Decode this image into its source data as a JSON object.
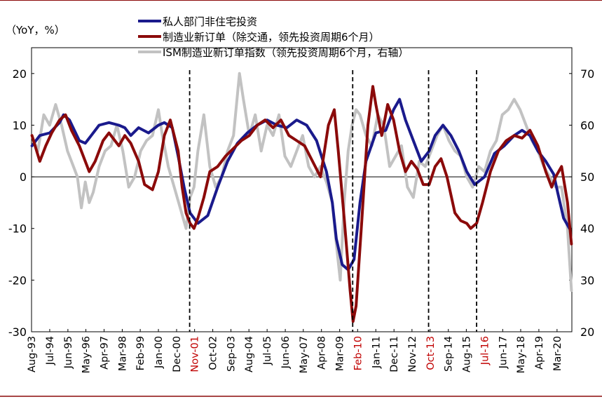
{
  "chart_data": {
    "type": "line",
    "unit_label": "（YoY，%）",
    "legend": [
      {
        "name": "私人部门非住宅投资",
        "color": "#1a1a8c",
        "axis": "left"
      },
      {
        "name": "制造业新订单（除交通，领先投资周期6个月）",
        "color": "#8b0a0a",
        "axis": "left"
      },
      {
        "name": "ISM制造业新订单指数（领先投资周期6个月，右轴）",
        "color": "#c2c2c2",
        "axis": "right"
      }
    ],
    "ylim_left": [
      -30,
      25
    ],
    "ylim_right": [
      20,
      75
    ],
    "y_ticks_left": [
      "20",
      "10",
      "0",
      "-10",
      "-20",
      "-30"
    ],
    "y_ticks_left_values": [
      20,
      10,
      0,
      -10,
      -20,
      -30
    ],
    "y_ticks_right": [
      "70",
      "60",
      "50",
      "40",
      "30",
      "20"
    ],
    "y_ticks_right_values": [
      70,
      60,
      50,
      40,
      30,
      20
    ],
    "x_range": [
      1993.58,
      2020.92
    ],
    "x_ticks": [
      "Aug-93",
      "Jul-94",
      "Jun-95",
      "May-96",
      "Apr-97",
      "Mar-98",
      "Feb-99",
      "Jan-00",
      "Dec-00",
      "Nov-01",
      "Oct-02",
      "Sep-03",
      "Aug-04",
      "Jul-05",
      "Jun-06",
      "May-07",
      "Apr-08",
      "Mar-09",
      "Feb-10",
      "Jan-11",
      "Dec-11",
      "Nov-12",
      "Oct-13",
      "Sep-14",
      "Aug-15",
      "Jul-16",
      "Jun-17",
      "May-18",
      "Apr-19",
      "Mar-20"
    ],
    "x_tick_values": [
      1993.58,
      1994.5,
      1995.42,
      1996.33,
      1997.25,
      1998.17,
      1999.08,
      2000.0,
      2000.92,
      2001.83,
      2002.75,
      2003.67,
      2004.58,
      2005.5,
      2006.42,
      2007.33,
      2008.25,
      2009.17,
      2010.08,
      2011.0,
      2011.92,
      2012.83,
      2013.75,
      2014.67,
      2015.58,
      2016.5,
      2017.42,
      2018.33,
      2019.25,
      2020.17
    ],
    "red_tick_labels": [
      "Nov-01",
      "Feb-10",
      "Oct-13",
      "Jul-16"
    ],
    "cycle_markers_x": [
      2001.58,
      2009.83,
      2013.67,
      2016.1
    ],
    "series": [
      {
        "name": "私人部门非住宅投资",
        "axis": "left",
        "x": [
          1993.6,
          1994.0,
          1994.5,
          1995.0,
          1995.2,
          1995.5,
          1996.0,
          1996.3,
          1996.6,
          1997.0,
          1997.5,
          1998.0,
          1998.3,
          1998.6,
          1999.0,
          1999.5,
          2000.0,
          2000.3,
          2000.7,
          2001.0,
          2001.3,
          2001.6,
          2002.0,
          2002.5,
          2003.0,
          2003.5,
          2004.0,
          2004.5,
          2005.0,
          2005.5,
          2006.0,
          2006.5,
          2007.0,
          2007.5,
          2008.0,
          2008.5,
          2008.8,
          2009.0,
          2009.3,
          2009.6,
          2009.9,
          2010.2,
          2010.5,
          2011.0,
          2011.5,
          2011.9,
          2012.2,
          2012.5,
          2012.9,
          2013.3,
          2013.7,
          2014.0,
          2014.4,
          2014.8,
          2015.2,
          2015.6,
          2016.0,
          2016.5,
          2017.0,
          2017.5,
          2018.0,
          2018.4,
          2018.8,
          2019.2,
          2019.6,
          2020.0,
          2020.2,
          2020.5,
          2020.8
        ],
        "y": [
          6.0,
          8.0,
          8.5,
          10.5,
          12.0,
          11.0,
          7.0,
          6.5,
          8.0,
          10.0,
          10.5,
          10.0,
          9.5,
          8.0,
          9.5,
          8.5,
          10.0,
          10.5,
          9.5,
          4.0,
          -2.0,
          -7.0,
          -9.0,
          -7.5,
          -2.0,
          3.0,
          6.5,
          8.5,
          10.0,
          11.0,
          10.0,
          9.5,
          11.0,
          10.0,
          7.0,
          1.0,
          -5.0,
          -12.0,
          -17.0,
          -18.0,
          -16.0,
          -5.0,
          3.0,
          8.5,
          9.0,
          13.0,
          15.0,
          11.0,
          7.0,
          3.0,
          5.0,
          8.0,
          10.0,
          8.0,
          5.0,
          1.0,
          -1.5,
          0.0,
          4.5,
          6.0,
          8.0,
          9.0,
          8.0,
          5.0,
          3.0,
          0.5,
          -3.0,
          -8.0,
          -10.0
        ]
      },
      {
        "name": "制造业新订单（除交通，领先投资周期6个月）",
        "axis": "left",
        "x": [
          1993.6,
          1994.0,
          1994.3,
          1994.6,
          1995.0,
          1995.3,
          1995.6,
          1996.0,
          1996.5,
          1996.8,
          1997.2,
          1997.5,
          1998.0,
          1998.3,
          1998.6,
          1999.0,
          1999.3,
          1999.7,
          2000.0,
          2000.3,
          2000.6,
          2001.0,
          2001.2,
          2001.4,
          2001.6,
          2001.8,
          2002.0,
          2002.3,
          2002.6,
          2003.0,
          2003.4,
          2003.8,
          2004.2,
          2004.6,
          2005.0,
          2005.4,
          2005.8,
          2006.2,
          2006.6,
          2007.0,
          2007.4,
          2007.8,
          2008.2,
          2008.6,
          2008.9,
          2009.1,
          2009.4,
          2009.7,
          2009.85,
          2010.0,
          2010.3,
          2010.6,
          2010.85,
          2011.0,
          2011.3,
          2011.6,
          2011.9,
          2012.2,
          2012.5,
          2012.8,
          2013.1,
          2013.4,
          2013.7,
          2014.0,
          2014.3,
          2014.6,
          2015.0,
          2015.3,
          2015.6,
          2015.8,
          2016.1,
          2016.4,
          2016.8,
          2017.2,
          2017.6,
          2018.0,
          2018.4,
          2018.8,
          2019.2,
          2019.6,
          2019.9,
          2020.1,
          2020.4,
          2020.7,
          2020.9
        ],
        "y": [
          8.0,
          3.0,
          6.0,
          8.5,
          11.0,
          12.0,
          9.0,
          6.0,
          1.0,
          3.0,
          7.0,
          8.5,
          6.0,
          8.0,
          6.5,
          3.0,
          -1.5,
          -2.5,
          1.0,
          8.0,
          11.0,
          5.0,
          -2.0,
          -7.0,
          -9.0,
          -10.0,
          -8.0,
          -4.0,
          1.0,
          2.0,
          4.0,
          5.5,
          7.0,
          8.0,
          10.0,
          11.0,
          9.5,
          11.0,
          8.0,
          7.0,
          6.0,
          3.0,
          0.0,
          10.0,
          13.0,
          5.0,
          -8.0,
          -22.0,
          -28.0,
          -25.0,
          -8.0,
          10.0,
          17.5,
          14.0,
          8.0,
          14.0,
          11.0,
          5.0,
          1.0,
          3.0,
          1.5,
          -1.5,
          -1.5,
          2.0,
          3.5,
          0.0,
          -7.0,
          -8.5,
          -9.0,
          -10.0,
          -9.0,
          -5.0,
          1.0,
          5.0,
          7.0,
          8.0,
          7.5,
          9.0,
          6.0,
          1.0,
          -2.0,
          0.0,
          2.0,
          -5.0,
          -13.0
        ]
      },
      {
        "name": "ISM制造业新订单指数（领先投资周期6个月，右轴）",
        "axis": "right",
        "x": [
          1993.6,
          1993.9,
          1994.2,
          1994.5,
          1994.8,
          1995.1,
          1995.4,
          1995.7,
          1995.9,
          1996.1,
          1996.3,
          1996.5,
          1996.7,
          1997.0,
          1997.3,
          1997.6,
          1997.9,
          1998.2,
          1998.5,
          1998.8,
          1999.1,
          1999.4,
          1999.7,
          2000.0,
          2000.2,
          2000.5,
          2000.8,
          2001.1,
          2001.4,
          2001.6,
          2001.8,
          2002.0,
          2002.3,
          2002.6,
          2002.9,
          2003.2,
          2003.5,
          2003.8,
          2004.1,
          2004.3,
          2004.6,
          2004.9,
          2005.2,
          2005.5,
          2005.8,
          2006.1,
          2006.4,
          2006.7,
          2007.0,
          2007.3,
          2007.6,
          2007.9,
          2008.2,
          2008.5,
          2008.8,
          2009.0,
          2009.2,
          2009.4,
          2009.6,
          2009.8,
          2010.0,
          2010.2,
          2010.5,
          2010.8,
          2011.1,
          2011.4,
          2011.7,
          2012.0,
          2012.3,
          2012.6,
          2012.9,
          2013.2,
          2013.5,
          2013.8,
          2014.1,
          2014.4,
          2014.7,
          2015.0,
          2015.3,
          2015.6,
          2015.9,
          2016.2,
          2016.5,
          2016.8,
          2017.1,
          2017.4,
          2017.7,
          2018.0,
          2018.3,
          2018.6,
          2018.9,
          2019.2,
          2019.5,
          2019.8,
          2020.1,
          2020.4,
          2020.7,
          2020.9
        ],
        "y": [
          58.0,
          55.0,
          62.0,
          60.0,
          64.0,
          60.0,
          55.0,
          52.0,
          50.0,
          44.0,
          49.0,
          45.0,
          47.0,
          52.0,
          55.0,
          56.0,
          60.0,
          55.0,
          48.0,
          50.0,
          55.0,
          57.0,
          58.0,
          63.0,
          58.0,
          52.0,
          48.0,
          44.0,
          40.0,
          46.0,
          48.0,
          55.0,
          62.0,
          52.0,
          48.0,
          50.0,
          55.0,
          58.0,
          70.0,
          65.0,
          58.0,
          62.0,
          55.0,
          60.0,
          58.0,
          62.0,
          54.0,
          52.0,
          55.0,
          58.0,
          52.0,
          50.0,
          52.0,
          49.0,
          45.0,
          37.0,
          30.0,
          45.0,
          55.0,
          60.0,
          63.0,
          62.0,
          58.0,
          56.0,
          62.0,
          60.0,
          52.0,
          54.0,
          56.0,
          48.0,
          46.0,
          53.0,
          52.0,
          55.0,
          58.0,
          60.0,
          57.0,
          55.0,
          54.0,
          50.0,
          48.0,
          52.0,
          51.0,
          55.0,
          57.0,
          62.0,
          63.0,
          65.0,
          63.0,
          60.0,
          57.0,
          55.0,
          52.0,
          50.0,
          48.0,
          48.0,
          40.0,
          28.0
        ]
      }
    ]
  }
}
